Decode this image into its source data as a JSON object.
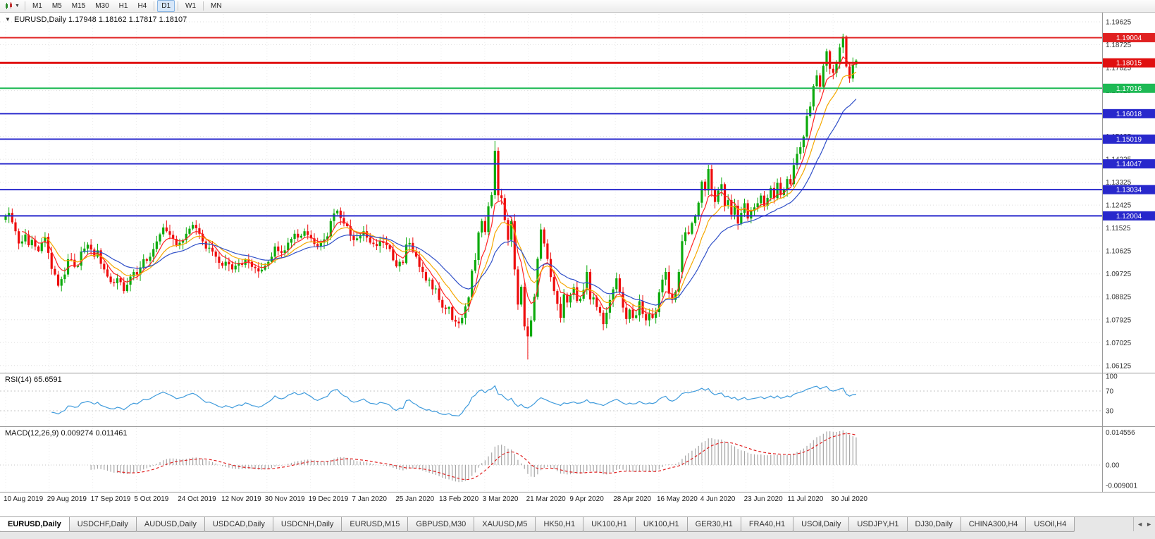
{
  "toolbar": {
    "timeframes": [
      "M1",
      "M5",
      "M15",
      "M30",
      "H1",
      "H4",
      "D1",
      "W1",
      "MN"
    ],
    "active_timeframe": "D1"
  },
  "chart": {
    "collapse_icon": "▼",
    "title": {
      "symbol": "EURUSD,Daily",
      "open": "1.17948",
      "high": "1.18162",
      "low": "1.17817",
      "close": "1.18107"
    }
  },
  "indicators": {
    "rsi": {
      "label": "RSI(14)",
      "value": "65.6591",
      "period": 14,
      "levels": [
        "100",
        "70",
        "30"
      ],
      "line_color": "#3f9bdc"
    },
    "macd": {
      "label": "MACD(12,26,9)",
      "value_main": "0.009274",
      "value_signal": "0.011461",
      "axis_labels": [
        "0.014556",
        "0.00",
        "-0.009001"
      ],
      "histogram_color": "#a6a6a6",
      "signal_color": "#e02020"
    }
  },
  "chart_data": {
    "type": "candlestick",
    "symbol": "EURUSD",
    "period": "Daily",
    "ylim": {
      "top": 1.1993,
      "bottom": 1.0587
    },
    "colors": {
      "up": "#0caa0c",
      "down": "#ee0c0c"
    },
    "price_axis_labels": [
      "1.19625",
      "1.18725",
      "1.17825",
      "1.16925",
      "1.16025",
      "1.15125",
      "1.14225",
      "1.13325",
      "1.12425",
      "1.11525",
      "1.10625",
      "1.09725",
      "1.08825",
      "1.07925",
      "1.07025",
      "1.06125"
    ],
    "x_labels": [
      "10 Aug 2019",
      "29 Aug 2019",
      "17 Sep 2019",
      "5 Oct 2019",
      "24 Oct 2019",
      "12 Nov 2019",
      "30 Nov 2019",
      "19 Dec 2019",
      "7 Jan 2020",
      "25 Jan 2020",
      "13 Feb 2020",
      "3 Mar 2020",
      "21 Mar 2020",
      "9 Apr 2020",
      "28 Apr 2020",
      "16 May 2020",
      "4 Jun 2020",
      "23 Jun 2020",
      "11 Jul 2020",
      "30 Jul 2020"
    ],
    "price_lines": [
      {
        "label": "1.19004",
        "price": 1.19004,
        "color": "#e02020",
        "width": 2
      },
      {
        "label": "1.18015",
        "price": 1.18015,
        "color": "#e01010",
        "width": 3
      },
      {
        "label": "1.17016",
        "price": 1.17016,
        "color": "#1db954",
        "width": 2
      },
      {
        "label": "1.16018",
        "price": 1.16018,
        "color": "#2828cc",
        "width": 2
      },
      {
        "label": "1.15019",
        "price": 1.15019,
        "color": "#2828cc",
        "width": 2
      },
      {
        "label": "1.14047",
        "price": 1.14047,
        "color": "#2828cc",
        "width": 2
      },
      {
        "label": "1.13034",
        "price": 1.13034,
        "color": "#2828cc",
        "width": 2
      },
      {
        "label": "1.12004",
        "price": 1.12004,
        "color": "#2828cc",
        "width": 2
      }
    ],
    "moving_averages": [
      {
        "name": "ma-fast",
        "period": 6,
        "color": "#ff2222"
      },
      {
        "name": "ma-medium",
        "period": 12,
        "color": "#f5a800"
      },
      {
        "name": "ma-slow",
        "period": 24,
        "color": "#3050c8"
      }
    ],
    "first_open": 1.1185,
    "closes": [
      1.12,
      1.1212,
      1.1175,
      1.114,
      1.1092,
      1.11,
      1.1127,
      1.1085,
      1.1106,
      1.108,
      1.1062,
      1.1095,
      1.1118,
      1.1055,
      1.0992,
      1.097,
      1.0926,
      1.0952,
      1.097,
      1.103,
      1.1028,
      1.1,
      1.1005,
      1.106,
      1.1072,
      1.1087,
      1.1068,
      1.104,
      1.1065,
      1.1012,
      1.099,
      1.0962,
      1.094,
      1.0936,
      1.0955,
      1.094,
      1.0905,
      1.093,
      1.0962,
      1.098,
      1.097,
      1.0998,
      1.103,
      1.1024,
      1.104,
      1.107,
      1.11,
      1.1128,
      1.1155,
      1.114,
      1.1126,
      1.111,
      1.1085,
      1.1095,
      1.1105,
      1.113,
      1.115,
      1.1165,
      1.1152,
      1.113,
      1.11,
      1.1072,
      1.1075,
      1.106,
      1.104,
      1.1016,
      1.1005,
      1.102,
      1.101,
      1.099,
      1.1005,
      1.1015,
      1.1008,
      1.103,
      1.102,
      1.1,
      1.0995,
      1.0982,
      1.0989,
      1.1005,
      1.102,
      1.104,
      1.108,
      1.1062,
      1.1055,
      1.1065,
      1.1095,
      1.111,
      1.113,
      1.1115,
      1.1122,
      1.114,
      1.1125,
      1.1112,
      1.109,
      1.108,
      1.1095,
      1.1108,
      1.112,
      1.118,
      1.121,
      1.1221,
      1.1192,
      1.117,
      1.116,
      1.1122,
      1.1105,
      1.1112,
      1.1125,
      1.114,
      1.1115,
      1.1095,
      1.109,
      1.1082,
      1.11,
      1.1094,
      1.1085,
      1.107,
      1.1026,
      1.1002,
      1.102,
      1.1015,
      1.1088,
      1.1094,
      1.106,
      1.104,
      1.1,
      1.098,
      1.0946,
      1.095,
      1.0912,
      1.0915,
      1.087,
      1.084,
      1.0835,
      1.0842,
      1.0792,
      1.0785,
      1.0778,
      1.08,
      1.0845,
      1.088,
      1.0985,
      1.1027,
      1.1135,
      1.118,
      1.1137,
      1.1238,
      1.1282,
      1.1456,
      1.1281,
      1.127,
      1.1184,
      1.1106,
      1.118,
      1.099,
      1.0852,
      1.0922,
      1.0766,
      1.0727,
      1.079,
      1.0882,
      1.1032,
      1.1147,
      1.1092,
      1.1031,
      1.096,
      1.0905,
      1.0855,
      1.08,
      1.0892,
      1.086,
      1.089,
      1.092,
      1.0866,
      1.0875,
      1.091,
      1.098,
      1.0872,
      1.088,
      1.0842,
      1.082,
      1.0775,
      1.082,
      1.087,
      1.0912,
      1.0955,
      1.0902,
      1.084,
      1.0795,
      1.0832,
      1.08,
      1.081,
      1.0865,
      1.0815,
      1.079,
      1.0815,
      1.08,
      1.0822,
      1.09,
      1.095,
      1.098,
      1.0895,
      1.087,
      1.0902,
      1.098,
      1.1101,
      1.1136,
      1.113,
      1.1172,
      1.12,
      1.1252,
      1.1335,
      1.13,
      1.1384,
      1.1302,
      1.1255,
      1.13,
      1.1325,
      1.124,
      1.1262,
      1.1205,
      1.124,
      1.117,
      1.1212,
      1.125,
      1.119,
      1.1219,
      1.1234,
      1.125,
      1.128,
      1.124,
      1.1271,
      1.131,
      1.127,
      1.133,
      1.1282,
      1.1302,
      1.1345,
      1.1325,
      1.14,
      1.1444,
      1.147,
      1.1512,
      1.1592,
      1.163,
      1.171,
      1.1752,
      1.1708,
      1.179,
      1.1847,
      1.1778,
      1.1762,
      1.1803,
      1.1862,
      1.1905,
      1.1787,
      1.174,
      1.1795,
      1.18107
    ],
    "wick_overrides": {
      "149": [
        1.1495,
        1.1268
      ],
      "159": [
        1.08,
        1.0636
      ],
      "255": [
        1.1916,
        1.184
      ]
    },
    "last_candle": {
      "open": 1.17948,
      "high": 1.18162,
      "low": 1.17817,
      "close": 1.18107
    }
  },
  "tabs": {
    "items": [
      "EURUSD,Daily",
      "USDCHF,Daily",
      "AUDUSD,Daily",
      "USDCAD,Daily",
      "USDCNH,Daily",
      "EURUSD,M15",
      "GBPUSD,M30",
      "XAUUSD,M5",
      "HK50,H1",
      "UK100,H1",
      "UK100,H1",
      "GER30,H1",
      "FRA40,H1",
      "USOil,Daily",
      "USDJPY,H1",
      "DJ30,Daily",
      "CHINA300,H4",
      "USOil,H4"
    ],
    "active": "EURUSD,Daily",
    "scroll_left_icon": "◄",
    "scroll_right_icon": "►"
  }
}
